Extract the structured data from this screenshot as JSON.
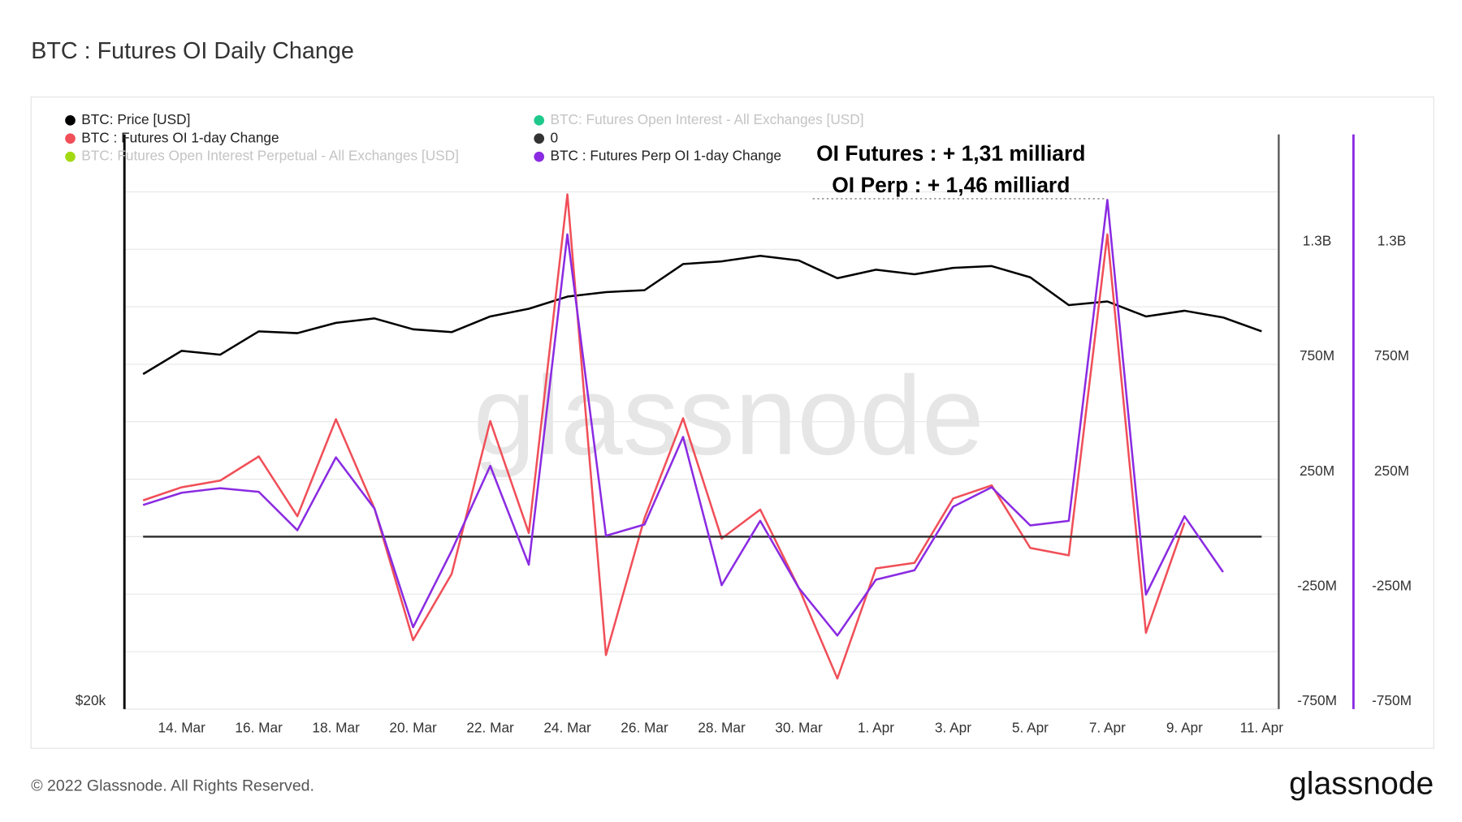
{
  "chart_data": {
    "type": "line",
    "title": "BTC : Futures OI Daily Change",
    "footer": "© 2022 Glassnode. All Rights Reserved.",
    "logo": "glassnode",
    "watermark": "glassnode",
    "annotations": [
      "OI Futures : + 1,31 milliard",
      "OI Perp : + 1,46 milliard"
    ],
    "categories": [
      null,
      "14. Mar",
      null,
      "16. Mar",
      null,
      "18. Mar",
      null,
      "20. Mar",
      null,
      "22. Mar",
      null,
      "24. Mar",
      null,
      "26. Mar",
      null,
      "28. Mar",
      null,
      "30. Mar",
      null,
      "1. Apr",
      null,
      "3. Apr",
      null,
      "5. Apr",
      null,
      "7. Apr",
      null,
      "9. Apr",
      null,
      "11. Apr"
    ],
    "ylim": [
      20000,
      59660
    ],
    "ylog": true,
    "yticks": [
      {
        "value": 20000,
        "label": "$20k"
      }
    ],
    "y2lim": [
      -750000000,
      1750000000
    ],
    "y2ticks": [
      {
        "value": -750000000,
        "label": "-750M"
      },
      {
        "value": -250000000,
        "label": "-250M"
      },
      {
        "value": 250000000,
        "label": "250M"
      },
      {
        "value": 750000000,
        "label": "750M"
      },
      {
        "value": 1250000000,
        "label": "1.3B"
      }
    ],
    "y3lim": [
      -750000000,
      1750000000
    ],
    "y3ticks": [
      {
        "value": -750000000,
        "label": "-750M"
      },
      {
        "value": -250000000,
        "label": "-250M"
      },
      {
        "value": 250000000,
        "label": "250M"
      },
      {
        "value": 750000000,
        "label": "750M"
      },
      {
        "value": 1250000000,
        "label": "1.3B"
      }
    ],
    "y2grid": [
      -500000000,
      0,
      500000000,
      1000000000,
      1500000000
    ],
    "grid": true,
    "series": [
      {
        "name": "BTC: Price [USD]",
        "color": "#000000",
        "axis": "y",
        "visible": true,
        "values": [
          37820,
          39530,
          39240,
          41020,
          40880,
          41690,
          42040,
          41180,
          40960,
          42200,
          42820,
          43820,
          44200,
          44360,
          46620,
          46860,
          47360,
          46940,
          45380,
          46120,
          45720,
          46280,
          46440,
          45460,
          43120,
          43420,
          42200,
          42660,
          42120,
          41020
        ]
      },
      {
        "name": "BTC: Futures Open Interest - All Exchanges [USD]",
        "color": "#1fc98b",
        "axis": "y2",
        "visible": false
      },
      {
        "name": "BTC : Futures OI 1-day Change",
        "color": "#f04f58",
        "axis": "y2",
        "visible": true,
        "values": [
          158000000,
          215000000,
          244000000,
          349000000,
          89000000,
          511000000,
          122000000,
          -450000000,
          -162000000,
          503000000,
          16000000,
          1489000000,
          -515000000,
          81000000,
          515000000,
          -8000000,
          118000000,
          -223000000,
          -617000000,
          -138000000,
          -114000000,
          166000000,
          223000000,
          -49000000,
          -81000000,
          1315000000,
          -418000000,
          61000000,
          null,
          null
        ]
      },
      {
        "name": "0",
        "color": "#333333",
        "axis": "y2",
        "visible": true,
        "values": [
          0,
          0,
          0,
          0,
          0,
          0,
          0,
          0,
          0,
          0,
          0,
          0,
          0,
          0,
          0,
          0,
          0,
          0,
          0,
          0,
          0,
          0,
          0,
          0,
          0,
          0,
          0,
          0,
          0,
          0
        ]
      },
      {
        "name": "BTC: Futures Open Interest Perpetual - All Exchanges [USD]",
        "color": "#a3d911",
        "axis": "y3",
        "visible": false
      },
      {
        "name": "BTC : Futures Perp OI 1-day Change",
        "color": "#8a2be2",
        "axis": "y3",
        "visible": true,
        "values": [
          138000000,
          191000000,
          211000000,
          195000000,
          28000000,
          345000000,
          122000000,
          -394000000,
          -61000000,
          308000000,
          -122000000,
          1315000000,
          4000000,
          53000000,
          434000000,
          -211000000,
          69000000,
          -223000000,
          -430000000,
          -187000000,
          -146000000,
          130000000,
          215000000,
          49000000,
          69000000,
          1465000000,
          -252000000,
          89000000,
          -154000000,
          null
        ]
      }
    ]
  }
}
